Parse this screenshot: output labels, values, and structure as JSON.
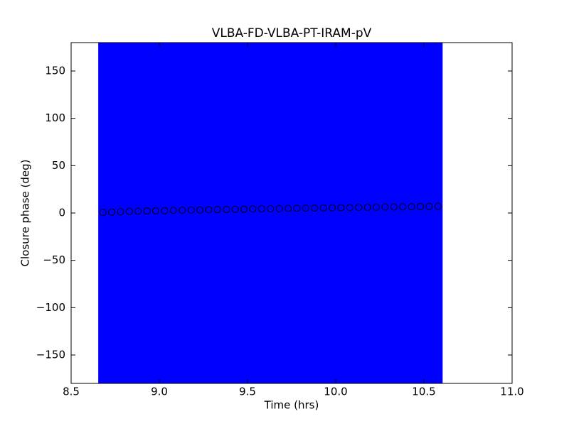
{
  "chart_data": {
    "type": "errorbar",
    "title": "VLBA-FD-VLBA-PT-IRAM-pV",
    "x_label": "Time (hrs)",
    "y_label": "Closure phase (deg)",
    "x": [
      8.68,
      8.73,
      8.78,
      8.83,
      8.88,
      8.93,
      8.98,
      9.03,
      9.08,
      9.13,
      9.18,
      9.23,
      9.28,
      9.33,
      9.38,
      9.43,
      9.48,
      9.53,
      9.58,
      9.63,
      9.68,
      9.73,
      9.78,
      9.83,
      9.88,
      9.93,
      9.98,
      10.03,
      10.08,
      10.13,
      10.18,
      10.23,
      10.28,
      10.33,
      10.38,
      10.43,
      10.48,
      10.53,
      10.58
    ],
    "values": [
      0.5,
      1.0,
      1.3,
      1.6,
      1.8,
      2.1,
      2.3,
      2.5,
      2.7,
      2.9,
      3.1,
      3.2,
      3.4,
      3.6,
      3.7,
      3.9,
      4.0,
      4.2,
      4.4,
      4.5,
      4.6,
      4.8,
      4.9,
      5.1,
      5.2,
      5.3,
      5.5,
      5.6,
      5.7,
      5.9,
      6.0,
      6.1,
      6.3,
      6.4,
      6.5,
      6.6,
      6.8,
      6.9,
      7.0
    ],
    "errors": [
      200,
      200,
      200,
      200,
      200,
      200,
      200,
      200,
      200,
      200,
      200,
      200,
      200,
      200,
      200,
      200,
      200,
      200,
      200,
      200,
      200,
      200,
      200,
      200,
      200,
      200,
      200,
      200,
      200,
      200,
      200,
      200,
      200,
      200,
      200,
      200,
      200,
      200,
      200
    ],
    "color": "#0000ff",
    "edge_color": "#000000",
    "xlim": [
      8.5,
      11.0
    ],
    "xticks": [
      {
        "value": 8.5,
        "label": "8.5"
      },
      {
        "value": 9.0,
        "label": "9.0"
      },
      9.5,
      {
        "value": 10.0,
        "label": "10.0"
      },
      10.5,
      {
        "value": 11.0,
        "label": "11.0"
      }
    ],
    "ylim": [
      -180,
      180
    ],
    "yticks": [
      {
        "value": -150,
        "label": "−150"
      },
      {
        "value": -100,
        "label": "−100"
      },
      {
        "value": -50,
        "label": "−50"
      },
      0,
      50,
      100,
      150
    ]
  }
}
